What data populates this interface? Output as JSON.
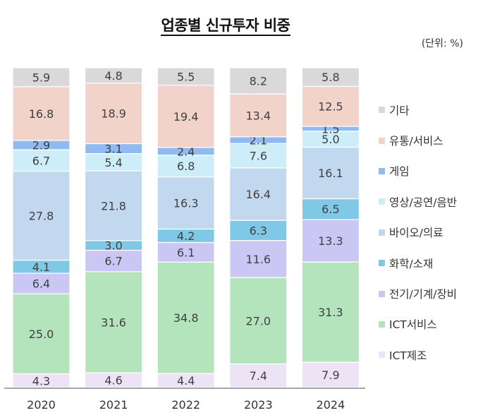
{
  "chart_data": {
    "type": "bar",
    "stacked": true,
    "normalized": true,
    "title": "업종별 신규투자 비중",
    "unit": "(단위: %)",
    "categories": [
      "2020",
      "2021",
      "2022",
      "2023",
      "2024"
    ],
    "series": [
      {
        "name": "ICT제조",
        "color": "#ede3f6",
        "values": [
          4.3,
          4.6,
          4.4,
          7.4,
          7.9
        ]
      },
      {
        "name": "ICT서비스",
        "color": "#b4e4bc",
        "values": [
          25.0,
          31.6,
          34.8,
          27.0,
          31.3
        ]
      },
      {
        "name": "전기/기계/장비",
        "color": "#cbc7f5",
        "values": [
          6.4,
          6.7,
          6.1,
          11.6,
          13.3
        ]
      },
      {
        "name": "화학/소재",
        "color": "#7fc9e6",
        "values": [
          4.1,
          3.0,
          4.2,
          6.3,
          6.5
        ]
      },
      {
        "name": "바이오/의료",
        "color": "#c2d8ee",
        "values": [
          27.8,
          21.8,
          16.3,
          16.4,
          16.1
        ]
      },
      {
        "name": "영상/공연/음반",
        "color": "#cdeef9",
        "values": [
          6.7,
          5.4,
          6.8,
          7.6,
          5.0
        ]
      },
      {
        "name": "게임",
        "color": "#90bbf0",
        "values": [
          2.9,
          3.1,
          2.4,
          2.1,
          1.5
        ]
      },
      {
        "name": "유통/서비스",
        "color": "#f2d3ca",
        "values": [
          16.8,
          18.9,
          19.4,
          13.4,
          12.5
        ]
      },
      {
        "name": "기타",
        "color": "#d9d9d9",
        "values": [
          5.9,
          4.8,
          5.5,
          8.2,
          5.8
        ]
      }
    ],
    "legend_position": "right",
    "legend_order": [
      "기타",
      "유통/서비스",
      "게임",
      "영상/공연/음반",
      "바이오/의료",
      "화학/소재",
      "전기/기계/장비",
      "ICT서비스",
      "ICT제조"
    ],
    "grid": false
  }
}
